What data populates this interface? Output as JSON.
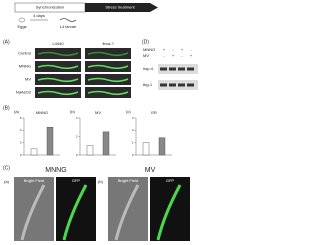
{
  "schematic": {
    "steps": [
      "Synchronization",
      "Stress treatment"
    ],
    "labels": [
      "Eggs",
      "4 days",
      "L4 larvae"
    ]
  },
  "panel_a": {
    "label": "(A)",
    "columns": [
      "L4440",
      "fbxa-?"
    ],
    "rows": [
      "Control",
      "MNNG",
      "MV",
      "NaAsO2"
    ]
  },
  "panel_d": {
    "label": "(D)",
    "treatments": [
      {
        "name": "MNNG",
        "signs": [
          "+",
          "-",
          "+",
          "-"
        ]
      },
      {
        "name": "MV",
        "signs": [
          "-",
          "+",
          "-",
          "+"
        ]
      }
    ],
    "blots": [
      "hsp-4",
      "tbg-1"
    ]
  },
  "panel_b": {
    "label": "(B)",
    "charts": [
      {
        "label": "(a)",
        "title": "MNNG",
        "values": [
          1,
          4.5
        ],
        "ylim": [
          0,
          6
        ],
        "yticks": [
          0,
          2,
          4,
          6
        ]
      },
      {
        "label": "(b)",
        "title": "MV",
        "values": [
          1,
          2.5
        ],
        "ylim": [
          0,
          4
        ],
        "yticks": [
          0,
          2,
          4
        ]
      },
      {
        "label": "(c)",
        "title": "ER",
        "values": [
          1,
          1.4
        ],
        "ylim": [
          0,
          3
        ],
        "yticks": [
          0,
          1,
          2,
          3
        ]
      }
    ]
  },
  "panel_c": {
    "label": "(C)",
    "groups": [
      {
        "title": "MNNG",
        "sub": "(a)",
        "images": [
          "Bright Field",
          "GFP"
        ]
      },
      {
        "title": "MV",
        "sub": "(b)",
        "images": [
          "Bright Field",
          "GFP"
        ]
      }
    ]
  }
}
